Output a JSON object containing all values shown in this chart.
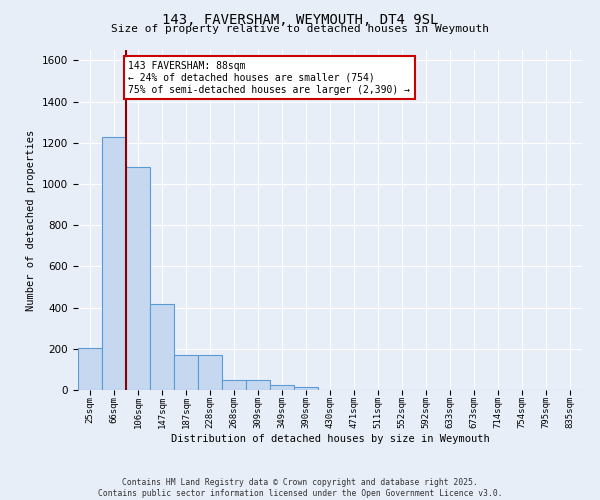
{
  "title1": "143, FAVERSHAM, WEYMOUTH, DT4 9SL",
  "title2": "Size of property relative to detached houses in Weymouth",
  "xlabel": "Distribution of detached houses by size in Weymouth",
  "ylabel": "Number of detached properties",
  "bar_labels": [
    "25sqm",
    "66sqm",
    "106sqm",
    "147sqm",
    "187sqm",
    "228sqm",
    "268sqm",
    "309sqm",
    "349sqm",
    "390sqm",
    "430sqm",
    "471sqm",
    "511sqm",
    "552sqm",
    "592sqm",
    "633sqm",
    "673sqm",
    "714sqm",
    "754sqm",
    "795sqm",
    "835sqm"
  ],
  "bar_values": [
    205,
    1230,
    1080,
    415,
    170,
    170,
    50,
    50,
    25,
    15,
    0,
    0,
    0,
    0,
    0,
    0,
    0,
    0,
    0,
    0,
    0
  ],
  "bar_color": "#c5d8f0",
  "bar_edge_color": "#5b9bd5",
  "vline_x": 1.5,
  "vline_color": "#8b0000",
  "annotation_text": "143 FAVERSHAM: 88sqm\n← 24% of detached houses are smaller (754)\n75% of semi-detached houses are larger (2,390) →",
  "annotation_box_color": "#ffffff",
  "annotation_box_edge": "#cc0000",
  "ylim": [
    0,
    1650
  ],
  "background_color": "#e8eef8",
  "grid_color": "#ffffff",
  "footer": "Contains HM Land Registry data © Crown copyright and database right 2025.\nContains public sector information licensed under the Open Government Licence v3.0."
}
